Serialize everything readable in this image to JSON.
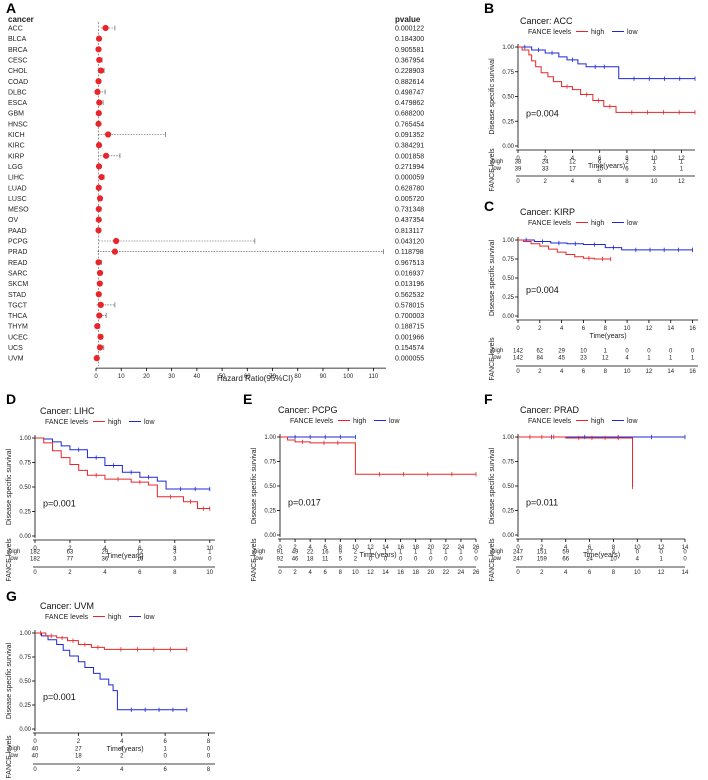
{
  "panel_labels": [
    "A",
    "B",
    "C",
    "D",
    "E",
    "F",
    "G"
  ],
  "colors": {
    "high": "#e8262a",
    "low": "#1f28d6",
    "forest": "#e8262a"
  },
  "chart_data": [
    {
      "type": "forest",
      "panel": "A",
      "col_cancer": "cancer",
      "col_pvalue": "pvalue",
      "xlabel": "Hazard Ratio(95%CI)",
      "xticks": [
        0,
        10,
        20,
        30,
        40,
        50,
        60,
        70,
        80,
        90,
        100,
        110
      ],
      "xlim": [
        0,
        115
      ],
      "rows": [
        {
          "cancer": "ACC",
          "pvalue": "0.000122",
          "hr": 3.8,
          "lo": 1.9,
          "hi": 7.5
        },
        {
          "cancer": "BLCA",
          "pvalue": "0.184300",
          "hr": 1.2,
          "lo": 0.9,
          "hi": 1.6
        },
        {
          "cancer": "BRCA",
          "pvalue": "0.905581",
          "hr": 1.0,
          "lo": 0.7,
          "hi": 1.4
        },
        {
          "cancer": "CESC",
          "pvalue": "0.367954",
          "hr": 1.3,
          "lo": 0.7,
          "hi": 2.4
        },
        {
          "cancer": "CHOL",
          "pvalue": "0.228903",
          "hr": 2.0,
          "lo": 0.6,
          "hi": 3.2
        },
        {
          "cancer": "COAD",
          "pvalue": "0.882614",
          "hr": 1.0,
          "lo": 0.6,
          "hi": 1.7
        },
        {
          "cancer": "DLBC",
          "pvalue": "0.498747",
          "hr": 0.6,
          "lo": 0.1,
          "hi": 3.6
        },
        {
          "cancer": "ESCA",
          "pvalue": "0.479862",
          "hr": 1.3,
          "lo": 0.6,
          "hi": 2.8
        },
        {
          "cancer": "GBM",
          "pvalue": "0.688200",
          "hr": 1.1,
          "lo": 0.7,
          "hi": 1.7
        },
        {
          "cancer": "HNSC",
          "pvalue": "0.765454",
          "hr": 1.0,
          "lo": 0.8,
          "hi": 1.4
        },
        {
          "cancer": "KICH",
          "pvalue": "0.091352",
          "hr": 4.8,
          "lo": 0.8,
          "hi": 27.5
        },
        {
          "cancer": "KIRC",
          "pvalue": "0.384291",
          "hr": 1.2,
          "lo": 0.8,
          "hi": 1.6
        },
        {
          "cancer": "KIRP",
          "pvalue": "0.001858",
          "hr": 4.0,
          "lo": 1.6,
          "hi": 9.5
        },
        {
          "cancer": "LGG",
          "pvalue": "0.271994",
          "hr": 1.2,
          "lo": 0.9,
          "hi": 1.7
        },
        {
          "cancer": "LIHC",
          "pvalue": "0.000059",
          "hr": 2.2,
          "lo": 1.5,
          "hi": 3.2
        },
        {
          "cancer": "LUAD",
          "pvalue": "0.628780",
          "hr": 1.1,
          "lo": 0.8,
          "hi": 1.5
        },
        {
          "cancer": "LUSC",
          "pvalue": "0.005720",
          "hr": 1.6,
          "lo": 1.2,
          "hi": 2.3
        },
        {
          "cancer": "MESO",
          "pvalue": "0.731348",
          "hr": 1.1,
          "lo": 0.6,
          "hi": 2.0
        },
        {
          "cancer": "OV",
          "pvalue": "0.437354",
          "hr": 1.1,
          "lo": 0.9,
          "hi": 1.4
        },
        {
          "cancer": "PAAD",
          "pvalue": "0.813117",
          "hr": 1.0,
          "lo": 0.7,
          "hi": 1.6
        },
        {
          "cancer": "PCPG",
          "pvalue": "0.043120",
          "hr": 8.0,
          "lo": 1.1,
          "hi": 63.0
        },
        {
          "cancer": "PRAD",
          "pvalue": "0.118798",
          "hr": 7.5,
          "lo": 0.6,
          "hi": 114.0
        },
        {
          "cancer": "READ",
          "pvalue": "0.967513",
          "hr": 1.0,
          "lo": 0.4,
          "hi": 2.2
        },
        {
          "cancer": "SARC",
          "pvalue": "0.016937",
          "hr": 1.6,
          "lo": 1.1,
          "hi": 2.4
        },
        {
          "cancer": "SKCM",
          "pvalue": "0.013196",
          "hr": 1.5,
          "lo": 1.1,
          "hi": 2.0
        },
        {
          "cancer": "STAD",
          "pvalue": "0.562532",
          "hr": 1.1,
          "lo": 0.8,
          "hi": 1.6
        },
        {
          "cancer": "TGCT",
          "pvalue": "0.578015",
          "hr": 1.9,
          "lo": 0.2,
          "hi": 7.5
        },
        {
          "cancer": "THCA",
          "pvalue": "0.700003",
          "hr": 1.3,
          "lo": 0.3,
          "hi": 4.0
        },
        {
          "cancer": "THYM",
          "pvalue": "0.188715",
          "hr": 0.5,
          "lo": 0.2,
          "hi": 1.5
        },
        {
          "cancer": "UCEC",
          "pvalue": "0.001966",
          "hr": 1.8,
          "lo": 1.2,
          "hi": 2.6
        },
        {
          "cancer": "UCS",
          "pvalue": "0.154574",
          "hr": 1.6,
          "lo": 0.8,
          "hi": 3.1
        },
        {
          "cancer": "UVM",
          "pvalue": "0.000055",
          "hr": 0.3,
          "lo": 0.1,
          "hi": 0.5
        }
      ]
    },
    {
      "type": "km",
      "panel": "B",
      "title": "Cancer: ACC",
      "legend_title": "FANCE levels",
      "series_names": [
        "high",
        "low"
      ],
      "pval": "p=0.004",
      "ylabel": "Disease specific survival",
      "xlabel": "Time(years)",
      "risk_ylabel": "FANCE levels",
      "xlim": [
        0,
        13
      ],
      "xticks": [
        0,
        2,
        4,
        6,
        8,
        10,
        12
      ],
      "ylim": [
        0,
        1
      ],
      "yticks": [
        "0.00",
        "0.25",
        "0.50",
        "0.75",
        "1.00"
      ],
      "high": [
        [
          0,
          1
        ],
        [
          0.3,
          0.97
        ],
        [
          0.8,
          0.92
        ],
        [
          1.0,
          0.86
        ],
        [
          1.3,
          0.8
        ],
        [
          1.7,
          0.74
        ],
        [
          2.2,
          0.7
        ],
        [
          2.6,
          0.65
        ],
        [
          3.2,
          0.6
        ],
        [
          4.0,
          0.57
        ],
        [
          4.6,
          0.52
        ],
        [
          5.5,
          0.46
        ],
        [
          6.3,
          0.4
        ],
        [
          7.2,
          0.34
        ],
        [
          13,
          0.34
        ]
      ],
      "low": [
        [
          0,
          1
        ],
        [
          1.0,
          0.97
        ],
        [
          2.0,
          0.94
        ],
        [
          3.0,
          0.9
        ],
        [
          3.6,
          0.87
        ],
        [
          4.4,
          0.83
        ],
        [
          5.0,
          0.8
        ],
        [
          7.0,
          0.8
        ],
        [
          7.4,
          0.68
        ],
        [
          13,
          0.68
        ]
      ],
      "risk_times": [
        0,
        2,
        4,
        6,
        8,
        10,
        12
      ],
      "risk_high": [
        38,
        24,
        12,
        6,
        2,
        1,
        1
      ],
      "risk_low": [
        39,
        33,
        17,
        10,
        6,
        3,
        1
      ]
    },
    {
      "type": "km",
      "panel": "C",
      "title": "Cancer: KIRP",
      "legend_title": "FANCE levels",
      "series_names": [
        "high",
        "low"
      ],
      "pval": "p=0.004",
      "ylabel": "Disease specific survival",
      "xlabel": "Time(years)",
      "risk_ylabel": "FANCE levels",
      "xlim": [
        0,
        16.5
      ],
      "xticks": [
        0,
        2,
        4,
        6,
        8,
        10,
        12,
        14,
        16
      ],
      "ylim": [
        0,
        1
      ],
      "yticks": [
        "0.00",
        "0.25",
        "0.50",
        "0.75",
        "1.00"
      ],
      "high": [
        [
          0,
          1
        ],
        [
          0.5,
          0.98
        ],
        [
          1.2,
          0.95
        ],
        [
          2.0,
          0.92
        ],
        [
          2.8,
          0.88
        ],
        [
          3.6,
          0.84
        ],
        [
          4.4,
          0.81
        ],
        [
          5.2,
          0.78
        ],
        [
          6.0,
          0.76
        ],
        [
          7.0,
          0.75
        ],
        [
          8.5,
          0.75
        ]
      ],
      "low": [
        [
          0,
          1
        ],
        [
          1.5,
          0.98
        ],
        [
          3.0,
          0.96
        ],
        [
          4.5,
          0.95
        ],
        [
          6.0,
          0.94
        ],
        [
          8.0,
          0.9
        ],
        [
          9.5,
          0.87
        ],
        [
          16,
          0.87
        ]
      ],
      "risk_times": [
        0,
        2,
        4,
        6,
        8,
        10,
        12,
        14,
        16
      ],
      "risk_high": [
        142,
        62,
        29,
        10,
        1,
        0,
        0,
        0,
        0
      ],
      "risk_low": [
        142,
        84,
        45,
        23,
        12,
        4,
        1,
        1,
        1
      ]
    },
    {
      "type": "km",
      "panel": "D",
      "title": "Cancer: LIHC",
      "legend_title": "FANCE levels",
      "series_names": [
        "high",
        "low"
      ],
      "pval": "p=0.001",
      "ylabel": "Disease specific survival",
      "xlabel": "Time(years)",
      "risk_ylabel": "FANCE levels",
      "xlim": [
        0,
        10.3
      ],
      "xticks": [
        0,
        2,
        4,
        6,
        8,
        10
      ],
      "ylim": [
        0,
        1
      ],
      "yticks": [
        "0.00",
        "0.25",
        "0.50",
        "0.75",
        "1.00"
      ],
      "high": [
        [
          0,
          1
        ],
        [
          0.5,
          0.95
        ],
        [
          1.0,
          0.87
        ],
        [
          1.5,
          0.8
        ],
        [
          2.0,
          0.73
        ],
        [
          2.5,
          0.67
        ],
        [
          3.0,
          0.62
        ],
        [
          4.0,
          0.58
        ],
        [
          5.5,
          0.55
        ],
        [
          6.5,
          0.52
        ],
        [
          7.0,
          0.4
        ],
        [
          8.5,
          0.35
        ],
        [
          9.3,
          0.28
        ],
        [
          10,
          0.28
        ]
      ],
      "low": [
        [
          0,
          1
        ],
        [
          0.5,
          0.99
        ],
        [
          1.0,
          0.96
        ],
        [
          1.5,
          0.92
        ],
        [
          2.0,
          0.88
        ],
        [
          3.0,
          0.8
        ],
        [
          4.0,
          0.72
        ],
        [
          5.0,
          0.65
        ],
        [
          6.0,
          0.6
        ],
        [
          7.0,
          0.56
        ],
        [
          7.5,
          0.48
        ],
        [
          10,
          0.48
        ]
      ],
      "risk_times": [
        0,
        2,
        4,
        6,
        8,
        10
      ],
      "risk_high": [
        182,
        63,
        29,
        12,
        3,
        1
      ],
      "risk_low": [
        182,
        77,
        36,
        16,
        3,
        0
      ]
    },
    {
      "type": "km",
      "panel": "E",
      "title": "Cancer: PCPG",
      "legend_title": "FANCE levels",
      "series_names": [
        "high",
        "low"
      ],
      "pval": "p=0.017",
      "ylabel": "Disease specific survival",
      "xlabel": "Time(years)",
      "risk_ylabel": "FANCE levels",
      "xlim": [
        0,
        26
      ],
      "xticks": [
        0,
        2,
        4,
        6,
        8,
        10,
        12,
        14,
        16,
        18,
        20,
        22,
        24,
        26
      ],
      "ylim": [
        0,
        1
      ],
      "yticks": [
        "0.00",
        "0.25",
        "0.50",
        "0.75",
        "1.00"
      ],
      "high": [
        [
          0,
          1
        ],
        [
          1.0,
          0.97
        ],
        [
          2.0,
          0.95
        ],
        [
          4.0,
          0.94
        ],
        [
          9.5,
          0.94
        ],
        [
          10,
          0.62
        ],
        [
          26,
          0.62
        ]
      ],
      "low": [
        [
          0,
          1
        ],
        [
          10,
          1
        ]
      ],
      "risk_times": [
        0,
        2,
        4,
        6,
        8,
        10,
        12,
        14,
        16,
        18,
        20,
        22,
        24,
        26
      ],
      "risk_high": [
        91,
        49,
        22,
        16,
        9,
        2,
        1,
        1,
        1,
        1,
        1,
        1,
        1,
        0
      ],
      "risk_low": [
        92,
        46,
        18,
        11,
        5,
        2,
        0,
        0,
        0,
        0,
        0,
        0,
        0,
        0
      ]
    },
    {
      "type": "km",
      "panel": "F",
      "title": "Cancer: PRAD",
      "legend_title": "FANCE levels",
      "series_names": [
        "high",
        "low"
      ],
      "pval": "p=0.011",
      "ylabel": "Disease specific survival",
      "xlabel": "Time(years)",
      "risk_ylabel": "FANCE levels",
      "xlim": [
        0,
        14
      ],
      "xticks": [
        0,
        2,
        4,
        6,
        8,
        10,
        12,
        14
      ],
      "ylim": [
        0,
        1
      ],
      "yticks": [
        "0.00",
        "0.25",
        "0.50",
        "0.75",
        "1.00"
      ],
      "high": [
        [
          0,
          1
        ],
        [
          4.0,
          0.99
        ],
        [
          9.5,
          0.99
        ],
        [
          9.6,
          0.49
        ]
      ],
      "low": [
        [
          0,
          1
        ],
        [
          14,
          1
        ]
      ],
      "risk_times": [
        0,
        2,
        4,
        6,
        8,
        10,
        12,
        14
      ],
      "risk_high": [
        247,
        151,
        59,
        17,
        4,
        0,
        0,
        0
      ],
      "risk_low": [
        247,
        159,
        66,
        24,
        10,
        4,
        1,
        0
      ]
    },
    {
      "type": "km",
      "panel": "G",
      "title": "Cancer: UVM",
      "legend_title": "FANCE levels",
      "series_names": [
        "high",
        "low"
      ],
      "pval": "p=0.001",
      "ylabel": "Disease specific survival",
      "xlabel": "Time(years)",
      "risk_ylabel": "FANCE levels",
      "xlim": [
        0,
        8.3
      ],
      "xticks": [
        0,
        2,
        4,
        6,
        8
      ],
      "ylim": [
        0,
        1
      ],
      "yticks": [
        "0.00",
        "0.25",
        "0.50",
        "0.75",
        "1.00"
      ],
      "high": [
        [
          0,
          1
        ],
        [
          0.5,
          0.97
        ],
        [
          1.0,
          0.95
        ],
        [
          1.5,
          0.92
        ],
        [
          2.0,
          0.88
        ],
        [
          2.6,
          0.85
        ],
        [
          3.2,
          0.83
        ],
        [
          7.0,
          0.83
        ]
      ],
      "low": [
        [
          0,
          1
        ],
        [
          0.3,
          0.97
        ],
        [
          0.6,
          0.93
        ],
        [
          1.0,
          0.88
        ],
        [
          1.3,
          0.82
        ],
        [
          1.6,
          0.76
        ],
        [
          2.0,
          0.7
        ],
        [
          2.3,
          0.64
        ],
        [
          2.7,
          0.58
        ],
        [
          3.0,
          0.52
        ],
        [
          3.4,
          0.46
        ],
        [
          3.6,
          0.4
        ],
        [
          3.8,
          0.2
        ],
        [
          7.0,
          0.2
        ]
      ],
      "risk_times": [
        0,
        2,
        4,
        6,
        8
      ],
      "risk_high": [
        40,
        27,
        4,
        1,
        0
      ],
      "risk_low": [
        40,
        18,
        2,
        0,
        0
      ]
    }
  ]
}
